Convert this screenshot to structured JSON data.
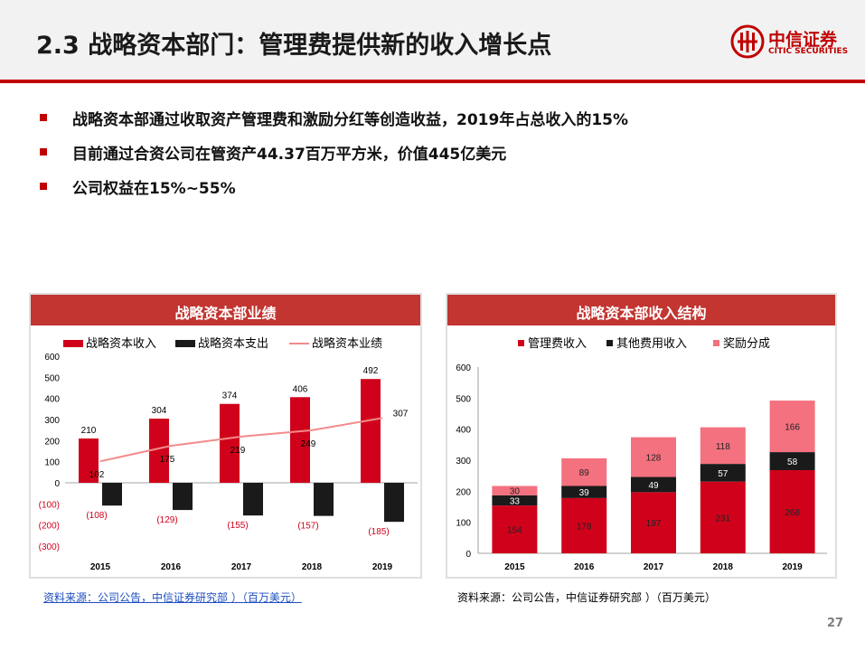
{
  "header": {
    "title": "2.3 战略资本部门：管理费提供新的收入增长点",
    "logo_cn": "中信证券",
    "logo_en": "CITIC SECURITIES"
  },
  "bullets": [
    "战略资本部通过收取资产管理费和激励分红等创造收益，2019年占总收入的15%",
    "目前通过合资公司在管资产44.37百万平方米，价值445亿美元",
    "公司权益在15%~55%"
  ],
  "colors": {
    "accent": "#c00000",
    "red_bar": "#d0021b",
    "black_bar": "#1a1a1a",
    "pink": "#f4717f",
    "line": "#f28b8b",
    "header": "#c23531"
  },
  "chart_data": [
    {
      "type": "bar",
      "title": "战略资本部业绩",
      "categories": [
        "2015",
        "2016",
        "2017",
        "2018",
        "2019"
      ],
      "series": [
        {
          "name": "战略资本收入",
          "type": "bar",
          "values": [
            210,
            304,
            374,
            406,
            492
          ]
        },
        {
          "name": "战略资本支出",
          "type": "bar",
          "values": [
            -108,
            -129,
            -155,
            -157,
            -185
          ]
        },
        {
          "name": "战略资本业绩",
          "type": "line",
          "values": [
            102,
            175,
            219,
            249,
            307
          ]
        }
      ],
      "y_ticks": [
        "600",
        "500",
        "400",
        "300",
        "200",
        "100",
        "0",
        "(100)",
        "(200)",
        "(300)"
      ],
      "expense_labels": [
        "(108)",
        "(129)",
        "(155)",
        "(157)",
        "(185)"
      ],
      "ylim": [
        -300,
        600
      ],
      "legend": "top"
    },
    {
      "type": "bar",
      "stacked": true,
      "title": "战略资本部收入结构",
      "categories": [
        "2015",
        "2016",
        "2017",
        "2018",
        "2019"
      ],
      "series": [
        {
          "name": "管理费收入",
          "values": [
            154,
            178,
            197,
            231,
            268
          ]
        },
        {
          "name": "其他费用收入",
          "values": [
            33,
            39,
            49,
            57,
            58
          ]
        },
        {
          "name": "奖励分成",
          "values": [
            30,
            89,
            128,
            118,
            166
          ]
        }
      ],
      "y_ticks": [
        "600",
        "500",
        "400",
        "300",
        "200",
        "100",
        "0"
      ],
      "ylim": [
        0,
        600
      ],
      "legend": "top"
    }
  ],
  "sources": {
    "left": "资料来源：公司公告，中信证券研究部 ）（百万美元）",
    "right": "资料来源：公司公告，中信证券研究部 ）（百万美元）"
  },
  "page_number": "27"
}
